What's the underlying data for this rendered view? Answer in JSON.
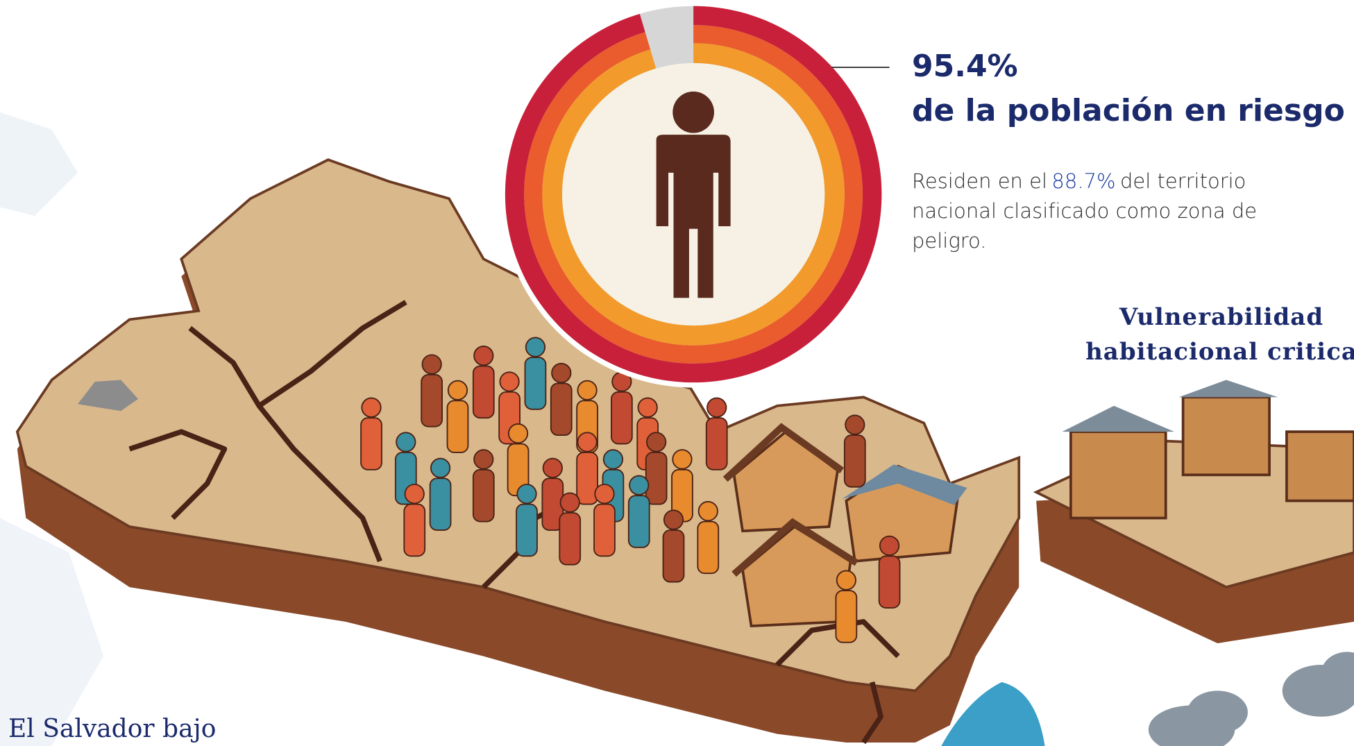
{
  "stat": {
    "value": 95.4,
    "label": "95.4%"
  },
  "headline": "de la población en riesgo",
  "description": {
    "before": "Residen en el",
    "highlight": "88.7%",
    "after": "del territorio nacional clasificado como zona de peligro."
  },
  "section_title": "Vulnerabilidad habitacional critica",
  "footer_title": "El Salvador bajo"
}
